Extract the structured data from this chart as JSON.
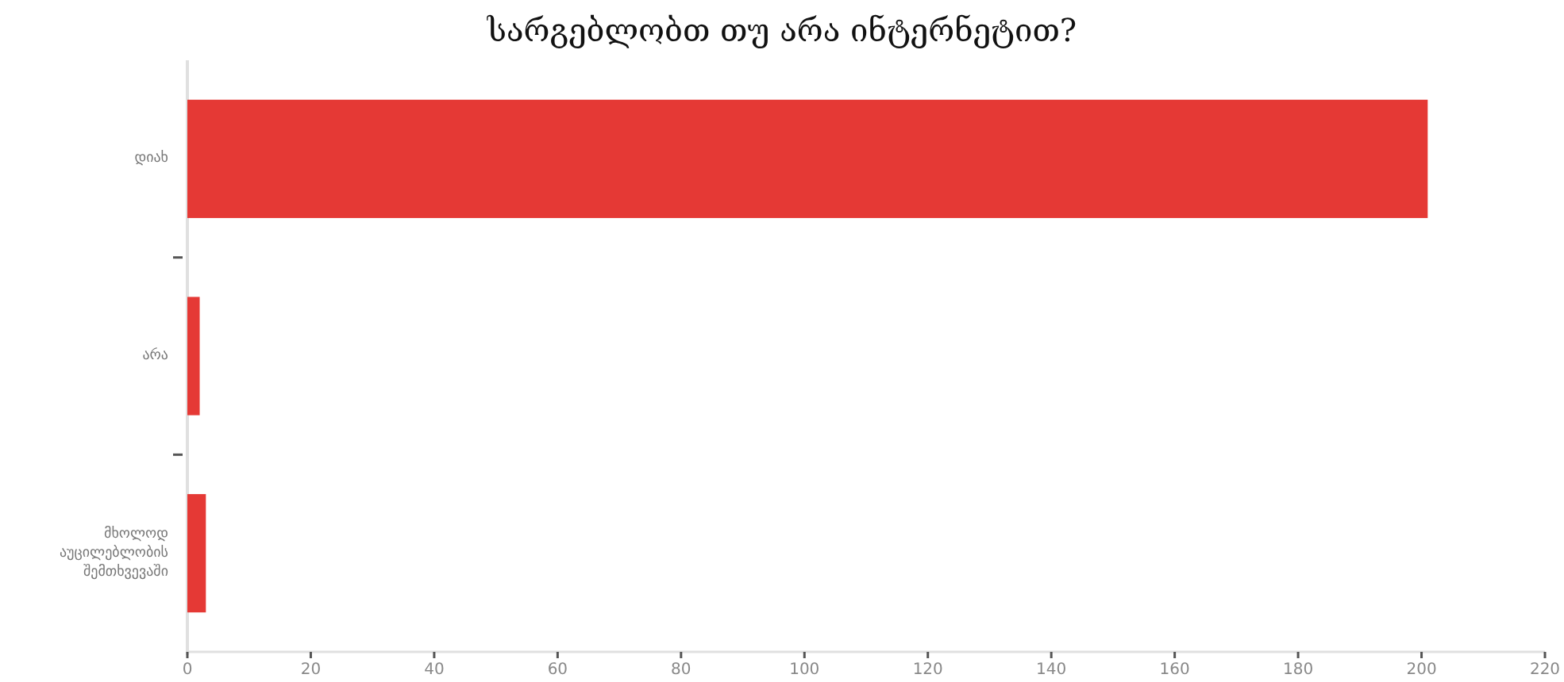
{
  "chart_data": {
    "type": "bar",
    "orientation": "horizontal",
    "title": "სარგებლობთ თუ არა ინტერნეტით?",
    "categories": [
      "დიახ",
      "არა",
      "მხოლოდ აუცილებლობის შემთხვევაში"
    ],
    "values": [
      201,
      2,
      3
    ],
    "color": "#e53935",
    "xlim": [
      0,
      220
    ],
    "xticks": [
      0,
      20,
      40,
      60,
      80,
      100,
      120,
      140,
      160,
      180,
      200,
      220
    ],
    "grid": false
  }
}
